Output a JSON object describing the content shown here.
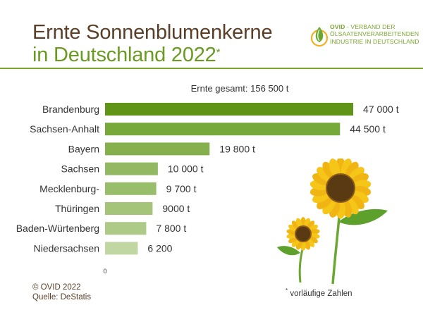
{
  "header": {
    "title_line1": "Ernte Sonnenblumenkerne",
    "title_line2": "in Deutschland 2022",
    "title_mark": "*"
  },
  "brand": {
    "name": "OVID",
    "line1_rest": " - VERBAND DER",
    "line2": "ÖLSAATENVERARBEITENDEN",
    "line3": "INDUSTRIE IN DEUTSCHLAND"
  },
  "total_label": "Ernte gesamt: 156 500 t",
  "chart_data": {
    "type": "bar",
    "orientation": "horizontal",
    "categories": [
      "Brandenburg",
      "Sachsen-Anhalt",
      "Bayern",
      "Sachsen",
      "Mecklenburg-",
      "Thüringen",
      "Baden-Würtenberg",
      "Niedersachsen"
    ],
    "values": [
      47000,
      44500,
      19800,
      10000,
      9700,
      9000,
      7800,
      6200
    ],
    "value_labels": [
      "47 000 t",
      "44 500 t",
      "19 800 t",
      "10 000 t",
      "9 700 t",
      "9000 t",
      "7 800 t",
      "6 200"
    ],
    "bar_colors": [
      "#5f9418",
      "#77a83a",
      "#85b04d",
      "#92b962",
      "#99be6b",
      "#a3c479",
      "#adcb87",
      "#c0d7a3"
    ],
    "xlim": [
      0,
      47000
    ],
    "x_axis_tick": "0",
    "grid": false,
    "legend": "none"
  },
  "footer": {
    "copyright": "© OVID 2022",
    "source": "Quelle: DeStatis",
    "note_mark": "*",
    "note": " vorläufige Zahlen"
  },
  "colors": {
    "brown": "#5a3f28",
    "green": "#6a9a22",
    "accent": "#7aa62e",
    "petal": "#f5c518",
    "center": "#5a3a12",
    "leaf": "#6aa832"
  },
  "icons": [
    "ovid-logo-icon",
    "sunflower-illustration"
  ]
}
